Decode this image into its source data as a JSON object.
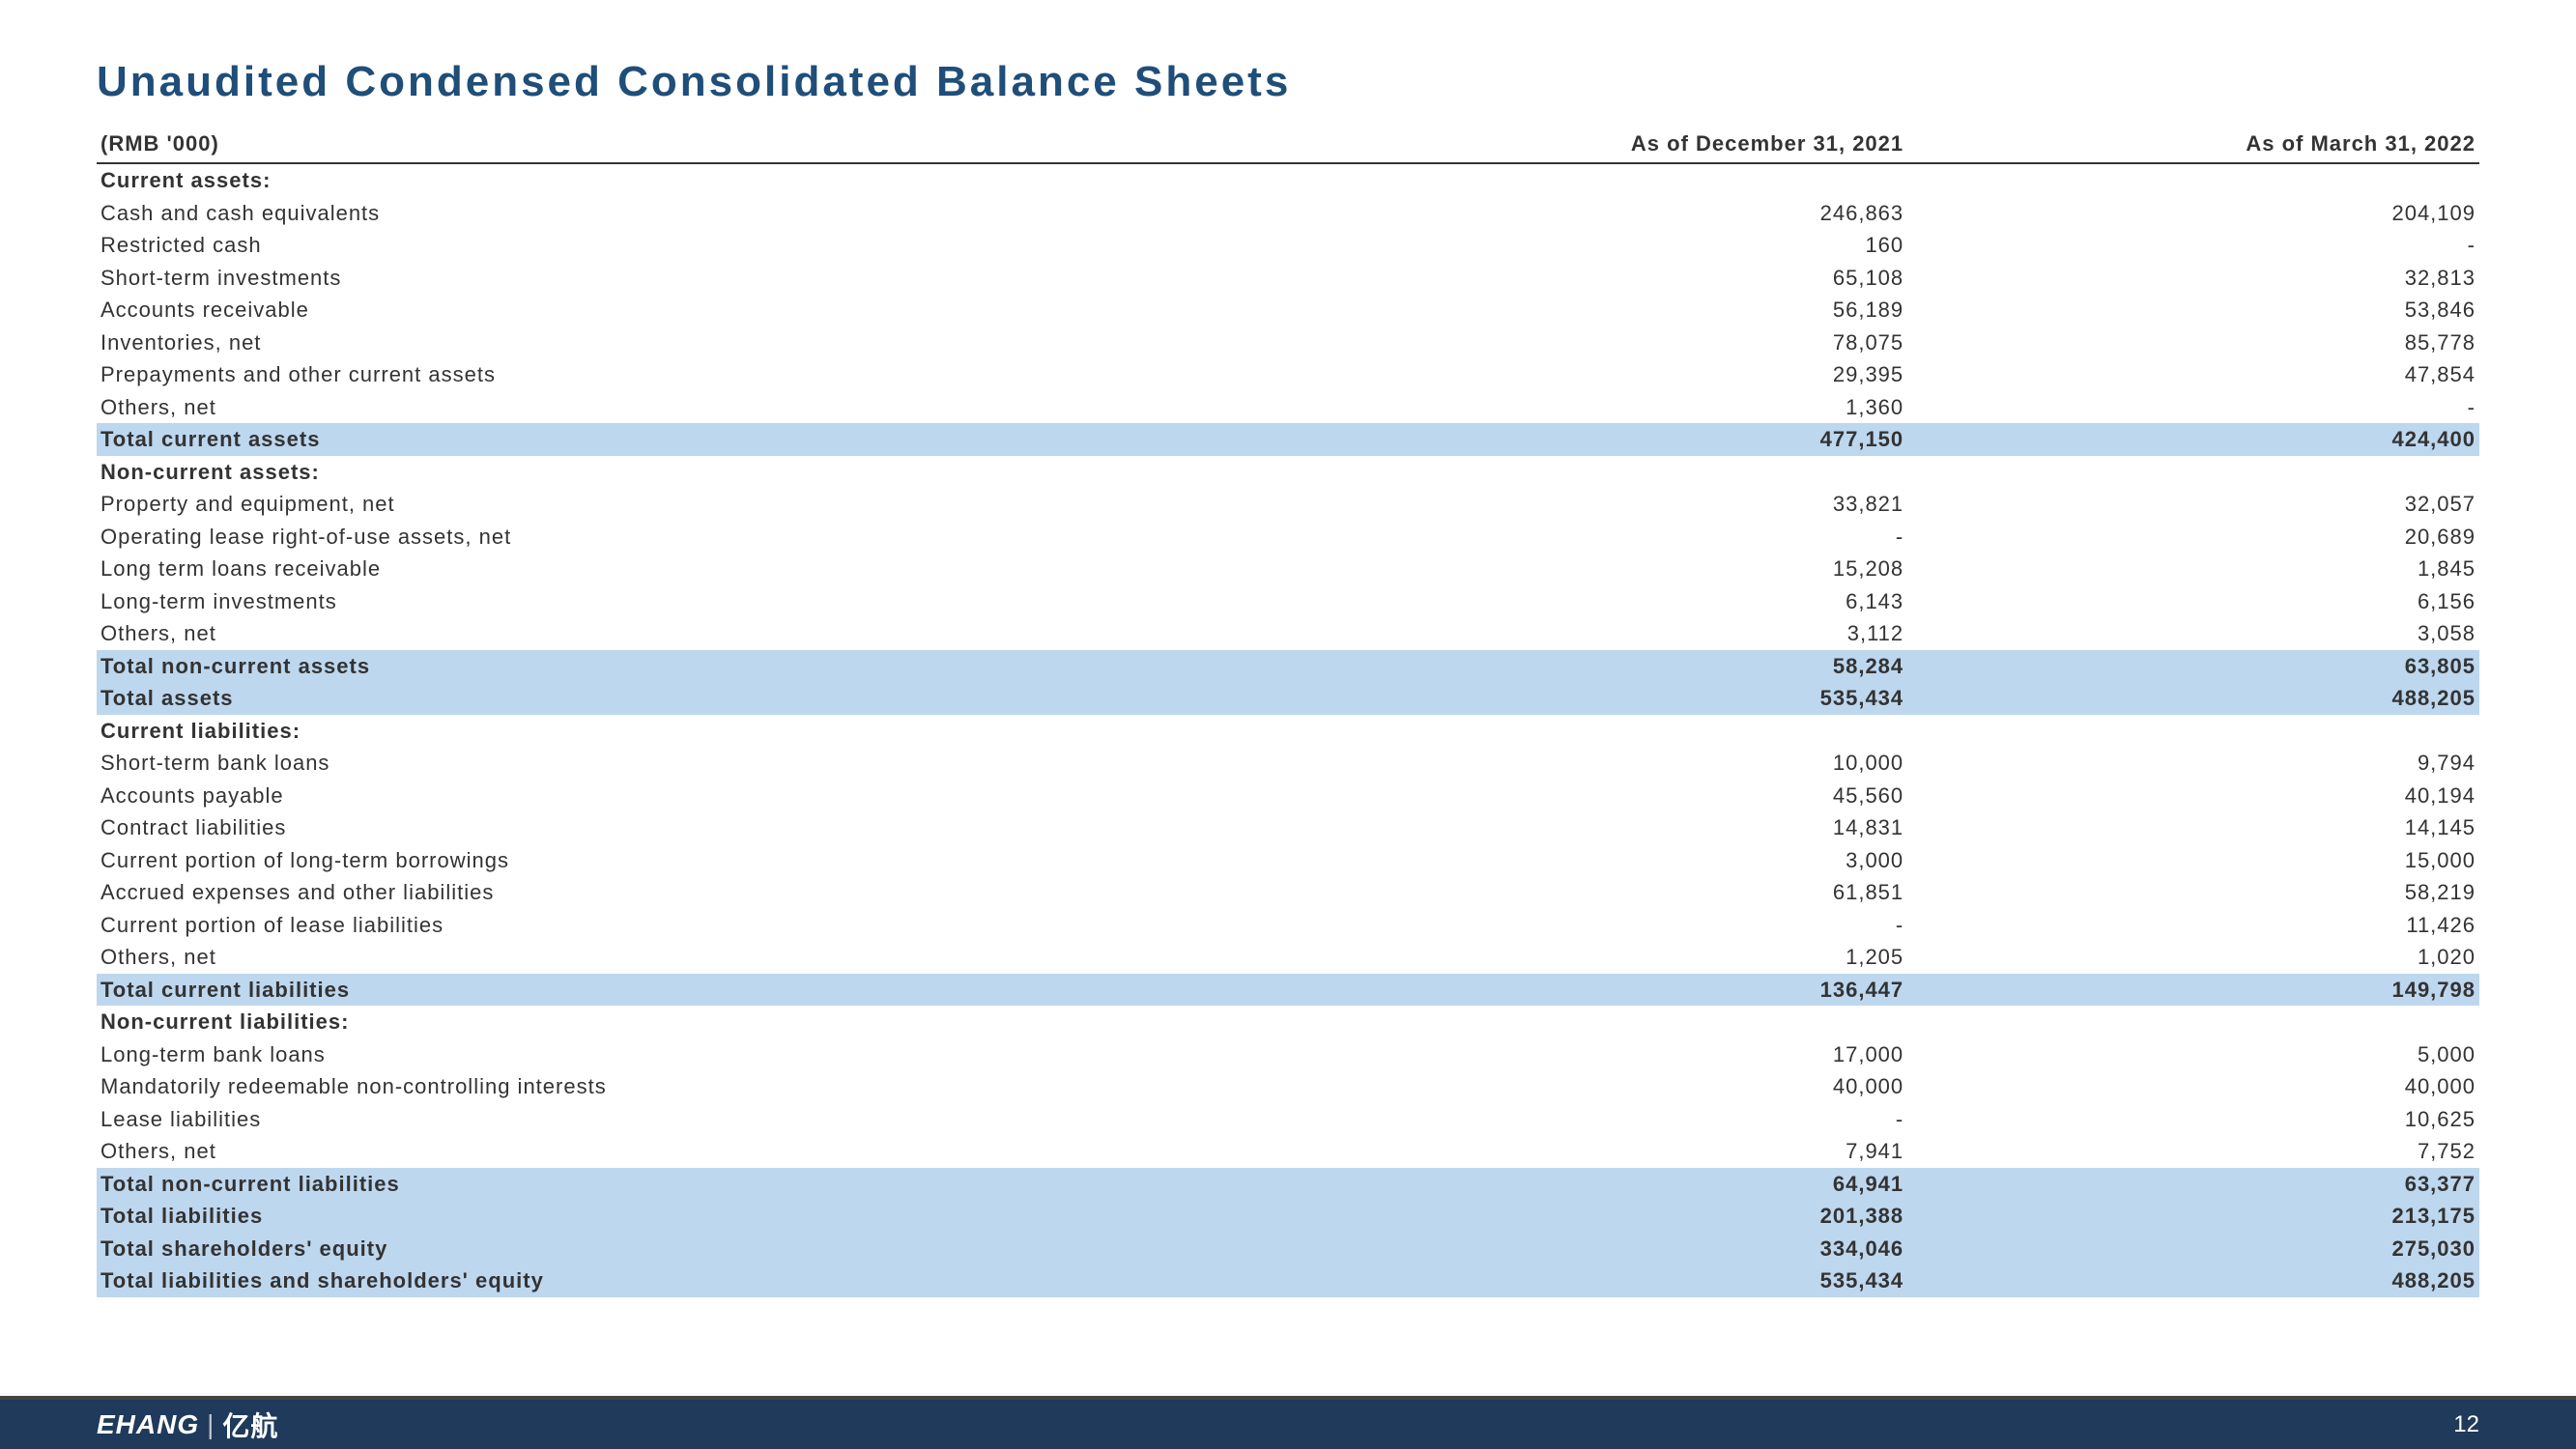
{
  "title": "Unaudited Condensed Consolidated Balance Sheets",
  "header": {
    "unit": "(RMB '000)",
    "col1": "As of December 31, 2021",
    "col2": "As of March 31, 2022"
  },
  "rows": [
    {
      "type": "section",
      "label": "Current assets:",
      "v1": "",
      "v2": ""
    },
    {
      "type": "data",
      "label": "Cash and cash equivalents",
      "v1": "246,863",
      "v2": "204,109"
    },
    {
      "type": "data",
      "label": "Restricted cash",
      "v1": "160",
      "v2": "-"
    },
    {
      "type": "data",
      "label": "Short-term investments",
      "v1": "65,108",
      "v2": "32,813"
    },
    {
      "type": "data",
      "label": "Accounts receivable",
      "v1": "56,189",
      "v2": "53,846"
    },
    {
      "type": "data",
      "label": "Inventories, net",
      "v1": "78,075",
      "v2": "85,778"
    },
    {
      "type": "data",
      "label": "Prepayments and other current assets",
      "v1": "29,395",
      "v2": "47,854"
    },
    {
      "type": "data",
      "label": "Others, net",
      "v1": "1,360",
      "v2": "-"
    },
    {
      "type": "total",
      "label": "Total current assets",
      "v1": "477,150",
      "v2": "424,400"
    },
    {
      "type": "section",
      "label": "Non-current assets:",
      "v1": "",
      "v2": ""
    },
    {
      "type": "data",
      "label": "Property and equipment, net",
      "v1": "33,821",
      "v2": "32,057"
    },
    {
      "type": "data",
      "label": "Operating lease right-of-use assets, net",
      "v1": "-",
      "v2": "20,689"
    },
    {
      "type": "data",
      "label": "Long term loans receivable",
      "v1": "15,208",
      "v2": "1,845"
    },
    {
      "type": "data",
      "label": "Long-term investments",
      "v1": "6,143",
      "v2": "6,156"
    },
    {
      "type": "data",
      "label": "Others, net",
      "v1": "3,112",
      "v2": "3,058"
    },
    {
      "type": "total",
      "label": "Total non-current assets",
      "v1": "58,284",
      "v2": "63,805"
    },
    {
      "type": "total",
      "label": "Total assets",
      "v1": "535,434",
      "v2": "488,205"
    },
    {
      "type": "section",
      "label": "Current liabilities:",
      "v1": "",
      "v2": ""
    },
    {
      "type": "data",
      "label": "Short-term bank loans",
      "v1": "10,000",
      "v2": "9,794"
    },
    {
      "type": "data",
      "label": "Accounts payable",
      "v1": "45,560",
      "v2": "40,194"
    },
    {
      "type": "data",
      "label": "Contract liabilities",
      "v1": "14,831",
      "v2": "14,145"
    },
    {
      "type": "data",
      "label": "Current portion of long-term borrowings",
      "v1": "3,000",
      "v2": "15,000"
    },
    {
      "type": "data",
      "label": "Accrued expenses and other liabilities",
      "v1": "61,851",
      "v2": "58,219"
    },
    {
      "type": "data",
      "label": "Current portion of lease liabilities",
      "v1": "-",
      "v2": "11,426"
    },
    {
      "type": "data",
      "label": "Others, net",
      "v1": "1,205",
      "v2": "1,020"
    },
    {
      "type": "total",
      "label": "Total current liabilities",
      "v1": "136,447",
      "v2": "149,798"
    },
    {
      "type": "section",
      "label": "Non-current liabilities:",
      "v1": "",
      "v2": ""
    },
    {
      "type": "data",
      "label": "Long-term bank loans",
      "v1": "17,000",
      "v2": "5,000"
    },
    {
      "type": "data",
      "label": "Mandatorily redeemable non-controlling interests",
      "v1": "40,000",
      "v2": "40,000"
    },
    {
      "type": "data",
      "label": "Lease liabilities",
      "v1": "-",
      "v2": "10,625"
    },
    {
      "type": "data",
      "label": "Others, net",
      "v1": "7,941",
      "v2": "7,752"
    },
    {
      "type": "total",
      "label": "Total non-current liabilities",
      "v1": "64,941",
      "v2": "63,377"
    },
    {
      "type": "total",
      "label": "Total liabilities",
      "v1": "201,388",
      "v2": "213,175"
    },
    {
      "type": "total",
      "label": "Total shareholders' equity",
      "v1": "334,046",
      "v2": "275,030"
    },
    {
      "type": "total",
      "label": "Total liabilities and shareholders' equity",
      "v1": "535,434",
      "v2": "488,205"
    }
  ],
  "footer": {
    "brand_en": "EHANG",
    "brand_cn": "亿航",
    "page": "12"
  },
  "style": {
    "title_color": "#1f4e79",
    "highlight_bg": "#bdd7ee",
    "footer_bg": "#1f3a5a",
    "text_color": "#333333"
  }
}
